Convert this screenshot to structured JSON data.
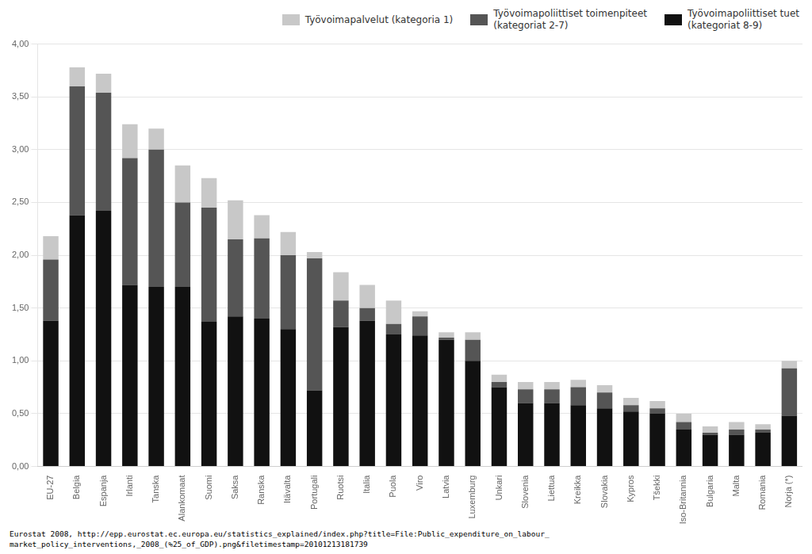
{
  "chart_data": {
    "type": "bar",
    "stacked": true,
    "grid": true,
    "legend": "upper right",
    "categories": [
      "EU-27",
      "Belgia",
      "Espanja",
      "Irlanti",
      "Tanska",
      "Alankomaat",
      "Suomi",
      "Saksa",
      "Ranska",
      "Itävalta",
      "Portugali",
      "Ruotsi",
      "Italia",
      "Puola",
      "Viro",
      "Latvia",
      "Luxemburg",
      "Unkari",
      "Slovenia",
      "Liettua",
      "Kreikka",
      "Slovakia",
      "Kypros",
      "Tšekki",
      "Iso-Britannia",
      "Bulgaria",
      "Malta",
      "Romania",
      "Norja (*)"
    ],
    "series": [
      {
        "name": "Työvoimapoliittiset tuet\n(kategoriat 8-9)",
        "color": "#111111",
        "values": [
          1.38,
          2.38,
          2.42,
          1.72,
          1.7,
          1.7,
          1.37,
          1.42,
          1.4,
          1.3,
          0.72,
          1.32,
          1.38,
          1.25,
          1.24,
          1.2,
          1.0,
          0.75,
          0.6,
          0.6,
          0.58,
          0.55,
          0.52,
          0.5,
          0.35,
          0.3,
          0.3,
          0.32,
          0.48
        ]
      },
      {
        "name": "Työvoimapoliittiset toimenpiteet\n(kategoriat 2-7)",
        "color": "#555555",
        "values": [
          0.58,
          1.22,
          1.12,
          1.2,
          1.3,
          0.8,
          1.08,
          0.73,
          0.76,
          0.7,
          1.25,
          0.25,
          0.12,
          0.1,
          0.18,
          0.02,
          0.2,
          0.05,
          0.13,
          0.13,
          0.17,
          0.15,
          0.06,
          0.05,
          0.07,
          0.02,
          0.05,
          0.03,
          0.45
        ]
      },
      {
        "name": "Työvoimapalvelut (kategoria 1)",
        "color": "#c8c8c8",
        "values": [
          0.22,
          0.18,
          0.18,
          0.32,
          0.2,
          0.35,
          0.28,
          0.37,
          0.22,
          0.22,
          0.06,
          0.27,
          0.22,
          0.22,
          0.05,
          0.05,
          0.07,
          0.07,
          0.07,
          0.07,
          0.07,
          0.07,
          0.07,
          0.07,
          0.08,
          0.06,
          0.07,
          0.05,
          0.07
        ]
      }
    ],
    "ylim": [
      0.0,
      4.0
    ],
    "yticks": [
      {
        "value": 0.0,
        "label": "0,00"
      },
      {
        "value": 0.5,
        "label": "0,50"
      },
      {
        "value": 1.0,
        "label": "1,00"
      },
      {
        "value": 1.5,
        "label": "1,50"
      },
      {
        "value": 2.0,
        "label": "2,00"
      },
      {
        "value": 2.5,
        "label": "2,50"
      },
      {
        "value": 3.0,
        "label": "3,00"
      },
      {
        "value": 3.5,
        "label": "3,50"
      },
      {
        "value": 4.0,
        "label": "4,00"
      }
    ],
    "annotations": [
      "Eurostat 2008, http://epp.eurostat.ec.europa.eu/statistics_explained/index.php?title=File:Public_expenditure_on_labour_\nmarket_policy_interventions,_2008_(%25_of_GDP).png&filetimestamp=20101213181739"
    ]
  }
}
